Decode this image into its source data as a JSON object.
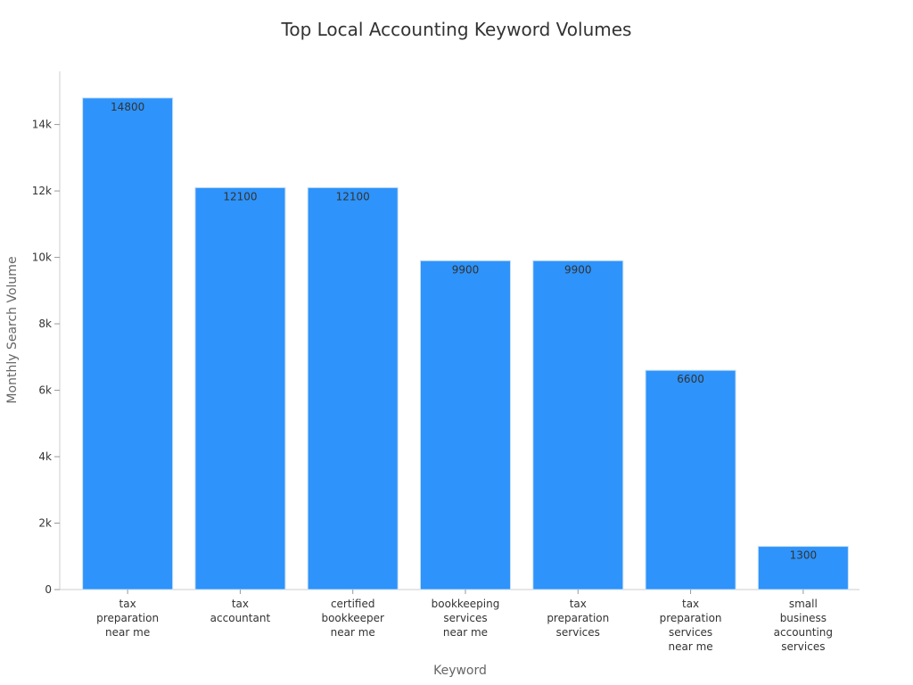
{
  "chart_data": {
    "type": "bar",
    "title": "Top Local Accounting Keyword Volumes",
    "xlabel": "Keyword",
    "ylabel": "Monthly Search Volume",
    "categories": [
      "tax preparation near me",
      "tax accountant",
      "certified bookkeeper near me",
      "bookkeeping services near me",
      "tax preparation services",
      "tax preparation services near me",
      "small business accounting services"
    ],
    "values": [
      14800,
      12100,
      12100,
      9900,
      9900,
      6600,
      1300
    ],
    "data_labels": [
      "14800",
      "12100",
      "12100",
      "9900",
      "9900",
      "6600",
      "1300"
    ],
    "ylim": [
      0,
      15600
    ],
    "yticks": [
      0,
      2000,
      4000,
      6000,
      8000,
      10000,
      12000,
      14000
    ],
    "ytick_labels": [
      "0",
      "2k",
      "4k",
      "6k",
      "8k",
      "10k",
      "12k",
      "14k"
    ],
    "grid": false,
    "legend": "none",
    "bar_color": "#2e93fa"
  }
}
